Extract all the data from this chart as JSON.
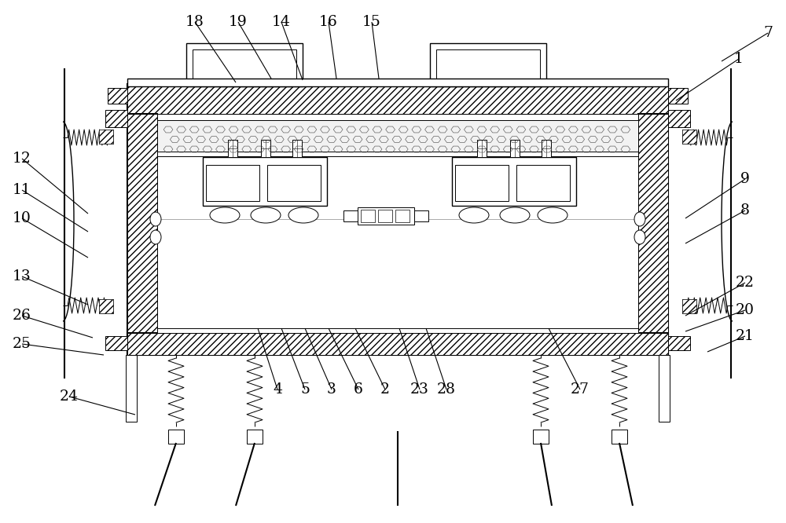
{
  "bg_color": "#ffffff",
  "lc": "#000000",
  "fig_w": 10.0,
  "fig_h": 6.66,
  "dpi": 100,
  "label_fs": 13.5,
  "annotations": [
    [
      "18",
      248,
      28,
      300,
      105
    ],
    [
      "19",
      303,
      28,
      345,
      100
    ],
    [
      "14",
      358,
      28,
      385,
      102
    ],
    [
      "16",
      418,
      28,
      428,
      100
    ],
    [
      "15",
      473,
      28,
      482,
      100
    ],
    [
      "1",
      940,
      75,
      860,
      128
    ],
    [
      "7",
      977,
      42,
      918,
      78
    ],
    [
      "9",
      948,
      228,
      872,
      278
    ],
    [
      "8",
      948,
      268,
      872,
      310
    ],
    [
      "22",
      948,
      360,
      872,
      402
    ],
    [
      "20",
      948,
      395,
      872,
      422
    ],
    [
      "21",
      948,
      428,
      900,
      448
    ],
    [
      "12",
      28,
      202,
      112,
      272
    ],
    [
      "11",
      28,
      242,
      112,
      295
    ],
    [
      "10",
      28,
      278,
      112,
      328
    ],
    [
      "13",
      28,
      352,
      112,
      388
    ],
    [
      "26",
      28,
      402,
      118,
      430
    ],
    [
      "25",
      28,
      438,
      132,
      452
    ],
    [
      "24",
      88,
      505,
      172,
      528
    ],
    [
      "4",
      353,
      496,
      328,
      418
    ],
    [
      "5",
      388,
      496,
      358,
      418
    ],
    [
      "3",
      422,
      496,
      388,
      418
    ],
    [
      "6",
      456,
      496,
      418,
      418
    ],
    [
      "2",
      490,
      496,
      452,
      418
    ],
    [
      "23",
      534,
      496,
      508,
      418
    ],
    [
      "28",
      568,
      496,
      542,
      418
    ],
    [
      "27",
      738,
      496,
      698,
      418
    ]
  ]
}
